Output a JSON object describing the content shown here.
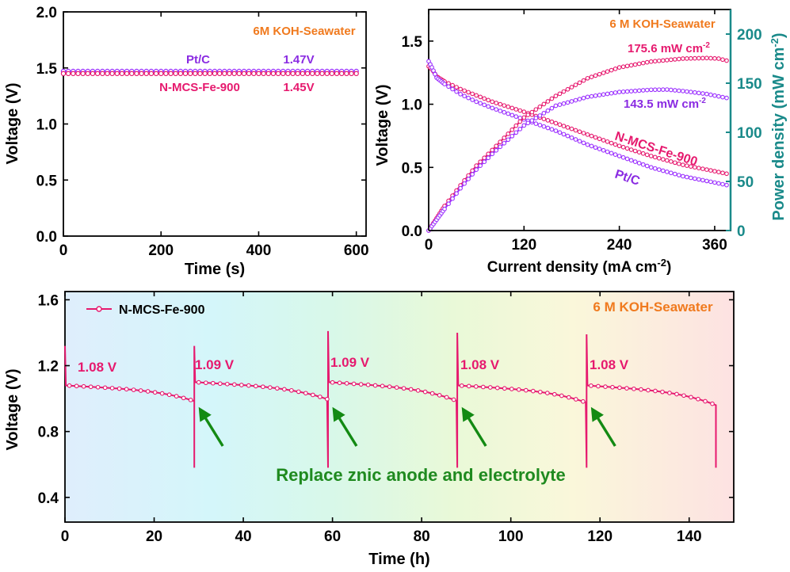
{
  "chart_data": [
    {
      "type": "line",
      "panel": "a",
      "xlabel": "Time (s)",
      "ylabel": "Voltage (V)",
      "xlim": [
        0,
        620
      ],
      "ylim": [
        0,
        2.0
      ],
      "xticks": [
        0,
        200,
        400,
        600
      ],
      "yticks": [
        0.0,
        0.5,
        1.0,
        1.5,
        2.0
      ],
      "ytick_labels": [
        "0.0",
        "0.5",
        "1.0",
        "1.5",
        "2.0"
      ],
      "annotation": "6M KOH-Seawater",
      "series": [
        {
          "name": "Pt/C",
          "value_label": "1.47V",
          "color": "#9b30ff",
          "x": [
            0,
            600
          ],
          "y": [
            1.47,
            1.47
          ]
        },
        {
          "name": "N-MCS-Fe-900",
          "value_label": "1.45V",
          "color": "#e6196e",
          "x": [
            0,
            600
          ],
          "y": [
            1.45,
            1.45
          ]
        }
      ]
    },
    {
      "type": "line",
      "panel": "b",
      "xlabel": "Current density (mA cm⁻²)",
      "ylabel": "Voltage (V)",
      "y2label": "Power density (mW cm⁻²)",
      "xlim": [
        0,
        380
      ],
      "ylim": [
        0,
        1.75
      ],
      "y2lim": [
        0,
        225
      ],
      "xticks": [
        0,
        120,
        240,
        360
      ],
      "yticks": [
        0.0,
        0.5,
        1.0,
        1.5
      ],
      "ytick_labels": [
        "0.0",
        "0.5",
        "1.0",
        "1.5"
      ],
      "y2ticks": [
        0,
        50,
        100,
        150,
        200
      ],
      "annotation": "6 M KOH-Seawater",
      "peak_labels": [
        "175.6 mW cm⁻²",
        "143.5 mW cm⁻²"
      ],
      "series": [
        {
          "name": "N-MCS-Fe-900",
          "kind": "voltage",
          "color": "#e6196e",
          "x": [
            0,
            5,
            10,
            20,
            40,
            60,
            80,
            120,
            160,
            200,
            240,
            280,
            320,
            360,
            375
          ],
          "y": [
            1.3,
            1.27,
            1.22,
            1.18,
            1.12,
            1.07,
            1.02,
            0.94,
            0.85,
            0.76,
            0.67,
            0.59,
            0.52,
            0.47,
            0.45
          ]
        },
        {
          "name": "Pt/C",
          "kind": "voltage",
          "color": "#9b30ff",
          "x": [
            0,
            5,
            10,
            20,
            40,
            60,
            80,
            120,
            160,
            200,
            240,
            280,
            320,
            360,
            375
          ],
          "y": [
            1.34,
            1.28,
            1.21,
            1.16,
            1.08,
            1.02,
            0.97,
            0.88,
            0.79,
            0.68,
            0.59,
            0.5,
            0.43,
            0.38,
            0.36
          ]
        },
        {
          "name": "N-MCS-Fe-900",
          "kind": "power",
          "color": "#e6196e",
          "x": [
            0,
            20,
            40,
            60,
            80,
            120,
            160,
            200,
            240,
            280,
            320,
            350,
            365,
            375
          ],
          "y": [
            0,
            25,
            46,
            66,
            82,
            115,
            137,
            155,
            166,
            172,
            175,
            175.6,
            175,
            173
          ]
        },
        {
          "name": "Pt/C",
          "kind": "power",
          "color": "#9b30ff",
          "x": [
            0,
            20,
            40,
            60,
            80,
            120,
            160,
            200,
            240,
            280,
            300,
            320,
            350,
            375
          ],
          "y": [
            0,
            22,
            43,
            62,
            78,
            107,
            127,
            136,
            141,
            143.3,
            143.5,
            142,
            139,
            135
          ]
        }
      ]
    },
    {
      "type": "line",
      "panel": "c",
      "xlabel": "Time (h)",
      "ylabel": "Voltage (V)",
      "xlim": [
        0,
        150
      ],
      "ylim": [
        0.25,
        1.65
      ],
      "xticks": [
        0,
        20,
        40,
        60,
        80,
        100,
        120,
        140
      ],
      "yticks": [
        0.4,
        0.8,
        1.2,
        1.6
      ],
      "annotation": "6 M KOH-Seawater",
      "note": "Replace znic anode and electrolyte",
      "legend": "N-MCS-Fe-900",
      "legend_position": "top-left",
      "segment_labels": [
        "1.08 V",
        "1.09 V",
        "1.09 V",
        "1.08 V",
        "1.08 V"
      ],
      "series": [
        {
          "name": "N-MCS-Fe-900",
          "color": "#e6196e",
          "segments": [
            {
              "start": 0,
              "end": 29,
              "v_start": 1.08,
              "v_end": 0.985,
              "spike": 1.32
            },
            {
              "start": 29,
              "end": 59,
              "v_start": 1.1,
              "v_end": 0.995,
              "spike": 1.32
            },
            {
              "start": 59,
              "end": 88,
              "v_start": 1.1,
              "v_end": 0.985,
              "spike": 1.41
            },
            {
              "start": 88,
              "end": 117,
              "v_start": 1.08,
              "v_end": 0.975,
              "spike": 1.4
            },
            {
              "start": 117,
              "end": 146,
              "v_start": 1.08,
              "v_end": 0.96,
              "spike": 1.39
            }
          ],
          "dip_min": 0.58
        }
      ]
    }
  ]
}
